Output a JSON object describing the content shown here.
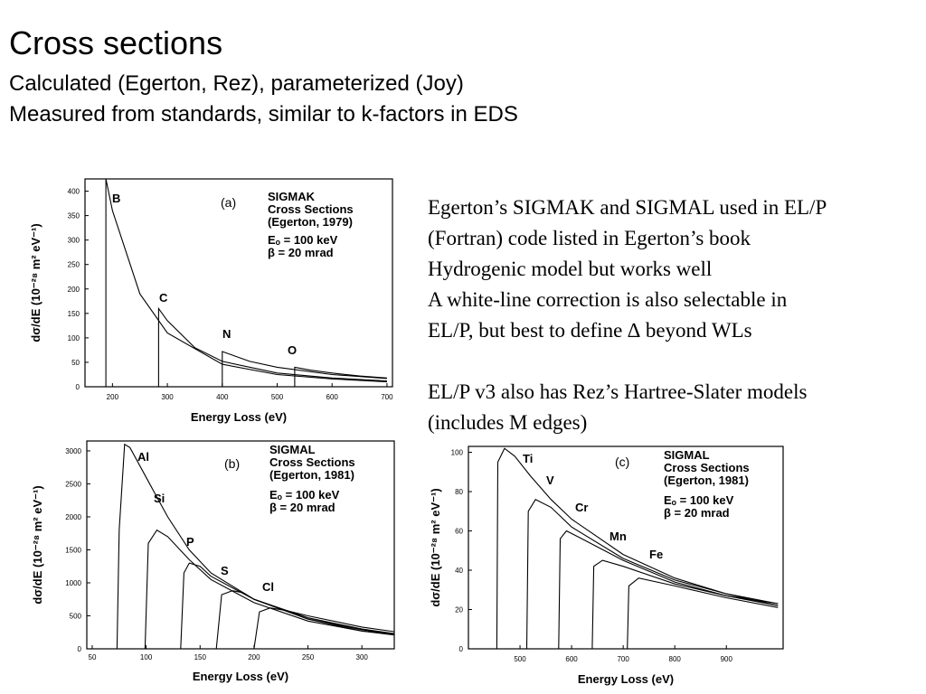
{
  "slide": {
    "title": "Cross sections",
    "subtitles": [
      "Calculated (Egerton, Rez), parameterized (Joy)",
      "Measured from standards, similar to k-factors in EDS"
    ]
  },
  "notes": {
    "lines": [
      "Egerton’s SIGMAK and SIGMAL used in EL/P",
      "(Fortran) code listed in Egerton’s book",
      "Hydrogenic model but works well",
      "A white-line correction is also selectable in",
      "EL/P, but best to define ∆ beyond WLs",
      "",
      "EL/P v3 also has Rez’s Hartree-Slater models",
      "(includes M edges)"
    ]
  },
  "chart_data": [
    {
      "type": "line",
      "panel": "(a)",
      "annotation": [
        "SIGMAK",
        "Cross Sections",
        "(Egerton, 1979)",
        "Eₒ = 100 keV",
        "β = 20 mrad"
      ],
      "xlabel": "Energy Loss (eV)",
      "ylabel": "dσ/dE (10⁻²⁸ m² eV⁻¹)",
      "xlim": [
        150,
        710
      ],
      "ylim": [
        0,
        425
      ],
      "xticks": [
        200,
        300,
        400,
        500,
        600,
        700
      ],
      "yticks": [
        0,
        50,
        100,
        150,
        200,
        250,
        300,
        350,
        400
      ],
      "series": [
        {
          "name": "B",
          "edge": 188,
          "x": [
            188,
            200,
            250,
            300,
            400,
            500,
            600,
            700
          ],
          "values": [
            425,
            360,
            190,
            110,
            46,
            25,
            16,
            10
          ]
        },
        {
          "name": "C",
          "edge": 284,
          "x": [
            284,
            300,
            350,
            400,
            500,
            600,
            700
          ],
          "values": [
            160,
            135,
            80,
            52,
            28,
            18,
            12
          ]
        },
        {
          "name": "N",
          "edge": 400,
          "x": [
            400,
            450,
            500,
            600,
            700
          ],
          "values": [
            72,
            52,
            40,
            25,
            17
          ]
        },
        {
          "name": "O",
          "edge": 532,
          "x": [
            532,
            560,
            600,
            650,
            700
          ],
          "values": [
            40,
            34,
            28,
            22,
            18
          ]
        }
      ]
    },
    {
      "type": "line",
      "panel": "(b)",
      "annotation": [
        "SIGMAL",
        "Cross Sections",
        "(Egerton, 1981)",
        "Eₒ = 100 keV",
        "β = 20 mrad"
      ],
      "xlabel": "Energy Loss (eV)",
      "ylabel": "dσ/dE (10⁻²⁸ m² eV⁻¹)",
      "xlim": [
        45,
        330
      ],
      "ylim": [
        0,
        3150
      ],
      "xticks": [
        50,
        100,
        150,
        200,
        250,
        300
      ],
      "yticks": [
        0,
        500,
        1000,
        1500,
        2000,
        2500,
        3000
      ],
      "series": [
        {
          "name": "Al",
          "edge": 73,
          "x": [
            73,
            75,
            80,
            85,
            100,
            110,
            120,
            140,
            160,
            200,
            250,
            300,
            330
          ],
          "values": [
            0,
            1800,
            3100,
            3050,
            2600,
            2300,
            2000,
            1500,
            1150,
            750,
            450,
            270,
            220
          ]
        },
        {
          "name": "Si",
          "edge": 99,
          "x": [
            99,
            102,
            110,
            120,
            140,
            160,
            200,
            250,
            300,
            330
          ],
          "values": [
            0,
            1600,
            1800,
            1700,
            1350,
            1050,
            700,
            420,
            270,
            210
          ]
        },
        {
          "name": "P",
          "edge": 132,
          "x": [
            132,
            135,
            140,
            150,
            160,
            200,
            250,
            300,
            330
          ],
          "values": [
            0,
            1150,
            1300,
            1250,
            1100,
            750,
            450,
            290,
            220
          ]
        },
        {
          "name": "S",
          "edge": 165,
          "x": [
            165,
            170,
            180,
            190,
            200,
            250,
            300,
            330
          ],
          "values": [
            0,
            820,
            880,
            850,
            750,
            470,
            300,
            230
          ]
        },
        {
          "name": "Cl",
          "edge": 200,
          "x": [
            200,
            205,
            215,
            230,
            250,
            300,
            330
          ],
          "values": [
            0,
            560,
            620,
            580,
            500,
            330,
            260
          ]
        }
      ]
    },
    {
      "type": "line",
      "panel": "(c)",
      "annotation": [
        "SIGMAL",
        "Cross Sections",
        "(Egerton, 1981)",
        "Eₒ = 100 keV",
        "β = 20 mrad"
      ],
      "xlabel": "Energy Loss (eV)",
      "ylabel": "dσ/dE (10⁻²⁸ m² eV⁻¹)",
      "xlim": [
        400,
        1010
      ],
      "ylim": [
        0,
        103
      ],
      "xticks": [
        500,
        600,
        700,
        800,
        900
      ],
      "yticks": [
        0,
        20,
        40,
        60,
        80,
        100
      ],
      "series": [
        {
          "name": "Ti",
          "edge": 455,
          "x": [
            455,
            457,
            470,
            490,
            520,
            560,
            600,
            700,
            800,
            900,
            1000
          ],
          "values": [
            0,
            95,
            102,
            98,
            88,
            76,
            66,
            48,
            36,
            28,
            22
          ]
        },
        {
          "name": "V",
          "edge": 513,
          "x": [
            513,
            516,
            530,
            560,
            600,
            700,
            800,
            900,
            1000
          ],
          "values": [
            0,
            70,
            76,
            72,
            62,
            46,
            35,
            28,
            23
          ]
        },
        {
          "name": "Cr",
          "edge": 575,
          "x": [
            575,
            578,
            590,
            620,
            700,
            800,
            900,
            1000
          ],
          "values": [
            0,
            56,
            60,
            56,
            45,
            34,
            27,
            22
          ]
        },
        {
          "name": "Mn",
          "edge": 640,
          "x": [
            640,
            643,
            660,
            700,
            800,
            900,
            1000
          ],
          "values": [
            0,
            42,
            45,
            42,
            33,
            27,
            23
          ]
        },
        {
          "name": "Fe",
          "edge": 708,
          "x": [
            708,
            711,
            730,
            800,
            900,
            1000
          ],
          "values": [
            0,
            32,
            36,
            32,
            26,
            21
          ]
        }
      ]
    }
  ]
}
